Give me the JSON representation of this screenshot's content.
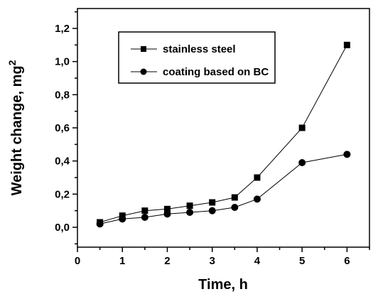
{
  "chart_data": {
    "type": "line",
    "title": "",
    "xlabel": "Time, h",
    "ylabel": "Weight change, mg",
    "ylabel_superscript": "2",
    "xlim": [
      0,
      6.5
    ],
    "ylim": [
      -0.12,
      1.32
    ],
    "x_ticks": [
      {
        "value": 0,
        "label": "0"
      },
      {
        "value": 1,
        "label": "1"
      },
      {
        "value": 2,
        "label": "2"
      },
      {
        "value": 3,
        "label": "3"
      },
      {
        "value": 4,
        "label": "4"
      },
      {
        "value": 5,
        "label": "5"
      },
      {
        "value": 6,
        "label": "6"
      }
    ],
    "y_ticks": [
      {
        "value": 0.0,
        "label": "0,0"
      },
      {
        "value": 0.2,
        "label": "0,2"
      },
      {
        "value": 0.4,
        "label": "0,4"
      },
      {
        "value": 0.6,
        "label": "0,6"
      },
      {
        "value": 0.8,
        "label": "0,8"
      },
      {
        "value": 1.0,
        "label": "1,0"
      },
      {
        "value": 1.2,
        "label": "1,2"
      }
    ],
    "grid": false,
    "legend_position": "top-right",
    "series": [
      {
        "name": "stainless steel",
        "marker": "square",
        "color": "#000000",
        "points": [
          [
            0.5,
            0.03
          ],
          [
            1.0,
            0.07
          ],
          [
            1.5,
            0.1
          ],
          [
            2.0,
            0.11
          ],
          [
            2.5,
            0.13
          ],
          [
            3.0,
            0.15
          ],
          [
            3.5,
            0.18
          ],
          [
            4.0,
            0.3
          ],
          [
            5.0,
            0.6
          ],
          [
            6.0,
            1.1
          ]
        ]
      },
      {
        "name": "coating based on BC",
        "marker": "circle",
        "color": "#000000",
        "points": [
          [
            0.5,
            0.02
          ],
          [
            1.0,
            0.05
          ],
          [
            1.5,
            0.06
          ],
          [
            2.0,
            0.08
          ],
          [
            2.5,
            0.09
          ],
          [
            3.0,
            0.1
          ],
          [
            3.5,
            0.12
          ],
          [
            4.0,
            0.17
          ],
          [
            5.0,
            0.39
          ],
          [
            6.0,
            0.44
          ]
        ]
      }
    ]
  }
}
